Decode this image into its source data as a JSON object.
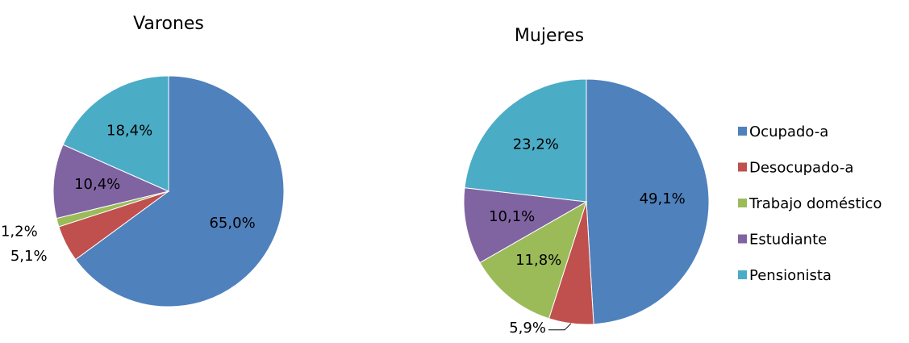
{
  "chart_data": [
    {
      "type": "pie",
      "title": "Varones",
      "values": [
        65.0,
        5.1,
        1.2,
        10.4,
        18.4
      ],
      "value_labels": [
        "65,0%",
        "5,1%",
        "1,2%",
        "10,4%",
        "18,4%"
      ],
      "colors": [
        "#4f81bd",
        "#c0504d",
        "#9bbb59",
        "#8064a2",
        "#4bacc6"
      ]
    },
    {
      "type": "pie",
      "title": "Mujeres",
      "categories": [
        "Ocupado-a",
        "Desocupado-a",
        "Trabajo doméstico",
        "Estudiante",
        "Pensionista"
      ],
      "values": [
        49.1,
        5.9,
        11.8,
        10.1,
        23.2
      ],
      "value_labels": [
        "49,1%",
        "5,9%",
        "11,8%",
        "10,1%",
        "23,2%"
      ],
      "colors": [
        "#4f81bd",
        "#c0504d",
        "#9bbb59",
        "#8064a2",
        "#4bacc6"
      ],
      "legend": "right"
    }
  ]
}
